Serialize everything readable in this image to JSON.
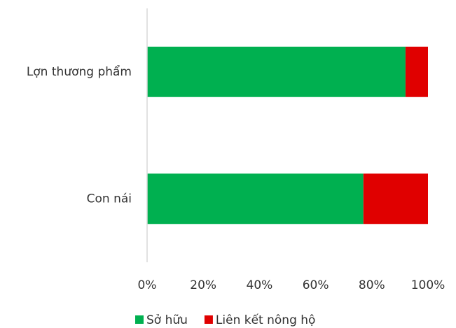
{
  "chart_data": {
    "type": "bar",
    "orientation": "horizontal",
    "stacked": true,
    "categories": [
      "Lợn thương phẩm",
      "Con nái"
    ],
    "series": [
      {
        "name": "Sở hữu",
        "color": "#00b050",
        "values": [
          92,
          77
        ]
      },
      {
        "name": "Liên kết nông hộ",
        "color": "#e00000",
        "values": [
          8,
          23
        ]
      }
    ],
    "xlim": [
      0,
      100
    ],
    "xticks": [
      {
        "value": 0,
        "label": "0%"
      },
      {
        "value": 20,
        "label": "20%"
      },
      {
        "value": 40,
        "label": "40%"
      },
      {
        "value": 60,
        "label": "60%"
      },
      {
        "value": 80,
        "label": "80%"
      },
      {
        "value": 100,
        "label": "100%"
      }
    ],
    "legend": "bottom"
  }
}
